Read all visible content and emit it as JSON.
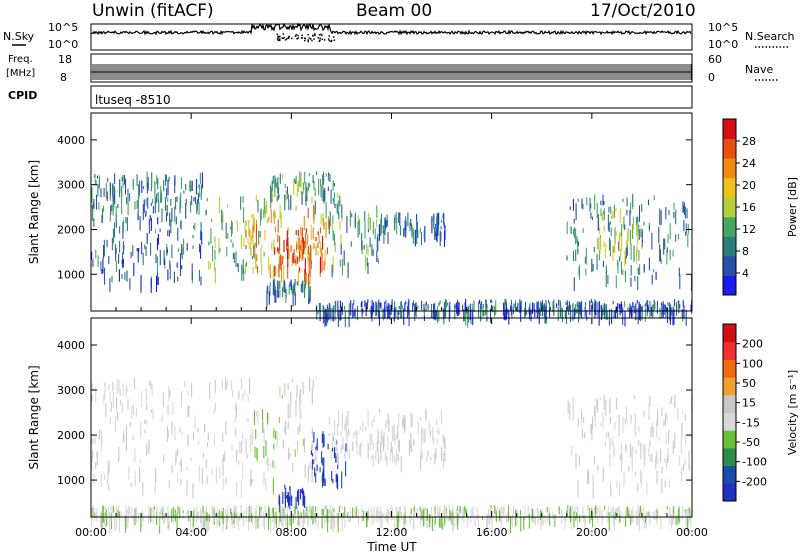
{
  "header": {
    "station": "Unwin (fitACF)",
    "beam": "Beam 00",
    "date": "17/Oct/2010"
  },
  "strips": {
    "nsky_label": "N.Sky",
    "nsearch_label": "N.Search",
    "noise_ticks": [
      "10^5",
      "10^0"
    ],
    "freq_label_1": "Freq.",
    "freq_label_2": "[MHz]",
    "freq_ticks": [
      "18",
      "8"
    ],
    "nave_label": "Nave",
    "nave_ticks": [
      "60",
      "0"
    ],
    "cpid_label": "CPID",
    "cpid_text": "ltuseq -8510"
  },
  "colors": {
    "power_scale": [
      "#1a1aee",
      "#2a4fa8",
      "#2d7d7a",
      "#45a860",
      "#b7cf3a",
      "#f0c020",
      "#f08a10",
      "#e85010",
      "#d61010"
    ],
    "velocity_scale": [
      "#d01010",
      "#f03030",
      "#f06a10",
      "#f0a030",
      "#c8c8c8",
      "#d8d8d8",
      "#6ac03a",
      "#2e8c4a",
      "#1a4cb0",
      "#2030c0"
    ]
  },
  "chart_data": [
    {
      "type": "heatmap",
      "title": "Power",
      "xlabel": "Time UT",
      "ylabel": "Slant Range [km]",
      "xticks": [
        "00:00",
        "04:00",
        "08:00",
        "12:00",
        "16:00",
        "20:00",
        "00:00"
      ],
      "xlim_hours": [
        0,
        24
      ],
      "yticks": [
        1000,
        2000,
        3000,
        4000
      ],
      "ylim_km": [
        180,
        4600
      ],
      "colorbar_label": "Power [dB]",
      "colorbar_ticks": [
        "4",
        "8",
        "12",
        "16",
        "20",
        "24",
        "28"
      ],
      "colorbar_range": [
        0,
        30
      ],
      "regions": [
        {
          "t0": 0.0,
          "t1": 4.5,
          "r0": 900,
          "r1": 2500,
          "value": 6
        },
        {
          "t0": 0.0,
          "t1": 4.5,
          "r0": 2500,
          "r1": 3300,
          "value": 8
        },
        {
          "t0": 4.5,
          "t1": 7.0,
          "r0": 1100,
          "r1": 2800,
          "value": 12
        },
        {
          "t0": 6.0,
          "t1": 9.5,
          "r0": 1000,
          "r1": 2600,
          "value": 20
        },
        {
          "t0": 7.3,
          "t1": 9.3,
          "r0": 1100,
          "r1": 2100,
          "value": 26
        },
        {
          "t0": 7.0,
          "t1": 10.0,
          "r0": 2600,
          "r1": 3300,
          "value": 10
        },
        {
          "t0": 9.5,
          "t1": 11.5,
          "r0": 1200,
          "r1": 2600,
          "value": 10
        },
        {
          "t0": 11.5,
          "t1": 14.2,
          "r0": 1900,
          "r1": 2400,
          "value": 7
        },
        {
          "t0": 7.0,
          "t1": 8.8,
          "r0": 600,
          "r1": 900,
          "value": 8
        },
        {
          "t0": 19.0,
          "t1": 24.0,
          "r0": 900,
          "r1": 2800,
          "value": 8
        },
        {
          "t0": 20.2,
          "t1": 22.0,
          "r0": 1500,
          "r1": 2500,
          "value": 14
        },
        {
          "t0": 9.0,
          "t1": 24.0,
          "r0": 180,
          "r1": 450,
          "value": 6
        }
      ]
    },
    {
      "type": "heatmap",
      "title": "Velocity",
      "xlabel": "Time UT",
      "ylabel": "Slant Range [km]",
      "xticks": [
        "00:00",
        "04:00",
        "08:00",
        "12:00",
        "16:00",
        "20:00",
        "00:00"
      ],
      "xlim_hours": [
        0,
        24
      ],
      "yticks": [
        1000,
        2000,
        3000,
        4000
      ],
      "ylim_km": [
        180,
        4600
      ],
      "colorbar_label": "Velocity [m s⁻¹]",
      "colorbar_ticks": [
        "200",
        "100",
        "50",
        "15",
        "-15",
        "-50",
        "-100",
        "-200"
      ],
      "colorbar_range": [
        -250,
        250
      ],
      "regions": [
        {
          "t0": 0.0,
          "t1": 6.5,
          "r0": 900,
          "r1": 3300,
          "value": 0
        },
        {
          "t0": 6.5,
          "t1": 7.5,
          "r0": 1000,
          "r1": 2600,
          "value": -60
        },
        {
          "t0": 7.5,
          "t1": 9.0,
          "r0": 1200,
          "r1": 3300,
          "value": 30
        },
        {
          "t0": 8.8,
          "t1": 10.2,
          "r0": 1000,
          "r1": 2100,
          "value": -200
        },
        {
          "t0": 7.5,
          "t1": 8.6,
          "r0": 600,
          "r1": 900,
          "value": -220
        },
        {
          "t0": 9.5,
          "t1": 14.2,
          "r0": 1500,
          "r1": 2600,
          "value": 0
        },
        {
          "t0": 19.0,
          "t1": 24.0,
          "r0": 900,
          "r1": 2900,
          "value": 0
        },
        {
          "t0": 0.0,
          "t1": 24.0,
          "r0": 180,
          "r1": 450,
          "value": -40
        }
      ]
    }
  ]
}
